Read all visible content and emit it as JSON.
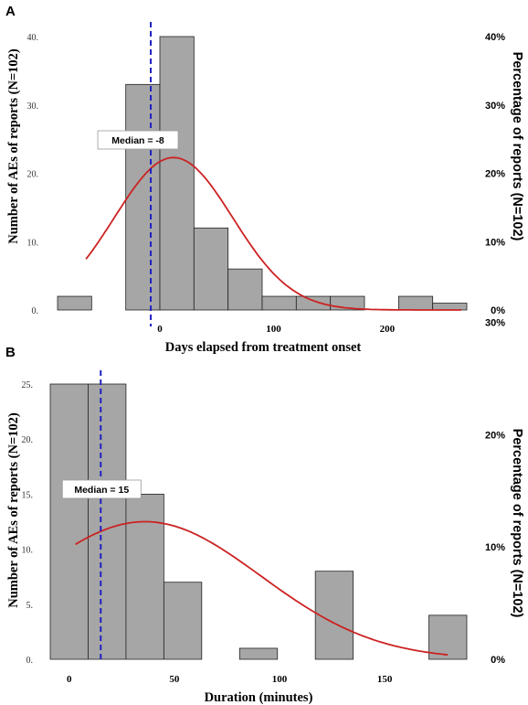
{
  "chart_data": [
    {
      "type": "bar",
      "panel": "A",
      "xlabel": "Days elapsed from treatment onset",
      "ylabel": "Number of AEs of reports (N=102)",
      "ylabel_right": "Percentage of reports (N=102)",
      "bins": [
        [
          -90,
          -60
        ],
        [
          -30,
          0
        ],
        [
          0,
          30
        ],
        [
          30,
          60
        ],
        [
          60,
          90
        ],
        [
          90,
          120
        ],
        [
          120,
          150
        ],
        [
          150,
          180
        ],
        [
          180,
          210
        ],
        [
          210,
          240
        ],
        [
          240,
          270
        ]
      ],
      "values": [
        2,
        33,
        40,
        12,
        6,
        2,
        2,
        2,
        0,
        2,
        1
      ],
      "xlim": [
        -90,
        270
      ],
      "ylim": [
        0,
        40
      ],
      "xticks": [
        0,
        100,
        200
      ],
      "yticks": [
        0,
        10,
        20,
        30,
        40
      ],
      "ytick_labels": [
        "0.",
        "10.",
        "20.",
        "30.",
        "40."
      ],
      "yticks_right": [
        "0%",
        "10%",
        "20%",
        "30%",
        "40%"
      ],
      "median": -8,
      "median_label": "Median = -8",
      "curve": {
        "x_start": -65,
        "x_end": 265,
        "mean": 12,
        "sd": 52,
        "peak": 22.3
      },
      "grid": false
    },
    {
      "type": "bar",
      "panel": "B",
      "xlabel": "Duration (minutes)",
      "ylabel": "Number of AEs of reports (N=102)",
      "ylabel_right": "Percentage of reports (N=102)",
      "bins": [
        [
          -9,
          9
        ],
        [
          9,
          27
        ],
        [
          27,
          45
        ],
        [
          45,
          63
        ],
        [
          63,
          81
        ],
        [
          81,
          99
        ],
        [
          99,
          117
        ],
        [
          117,
          135
        ],
        [
          135,
          153
        ],
        [
          153,
          171
        ],
        [
          171,
          189
        ]
      ],
      "values": [
        25,
        25,
        15,
        7,
        0,
        1,
        0,
        8,
        0,
        0,
        4
      ],
      "xlim": [
        -9,
        189
      ],
      "ylim": [
        0,
        25
      ],
      "xticks": [
        0,
        50,
        100,
        150
      ],
      "yticks": [
        0,
        5,
        10,
        15,
        20,
        25
      ],
      "ytick_labels": [
        "0.",
        "5.",
        "10.",
        "15.",
        "20.",
        "25."
      ],
      "yticks_right": [
        "0%",
        "10%",
        "20%",
        "30%"
      ],
      "yticks_right_values": [
        0,
        0.1,
        0.2,
        0.3
      ],
      "median": 15,
      "median_label": "Median = 15",
      "curve": {
        "x_start": 3,
        "x_end": 180,
        "mean": 36,
        "sd": 55,
        "peak": 12.5
      },
      "grid": false
    }
  ],
  "colors": {
    "bar_fill": "#a6a6a6",
    "bar_stroke": "#222222",
    "curve": "#cc2222",
    "median_line": "#2020c0"
  },
  "panel_labels": [
    "A",
    "B"
  ]
}
